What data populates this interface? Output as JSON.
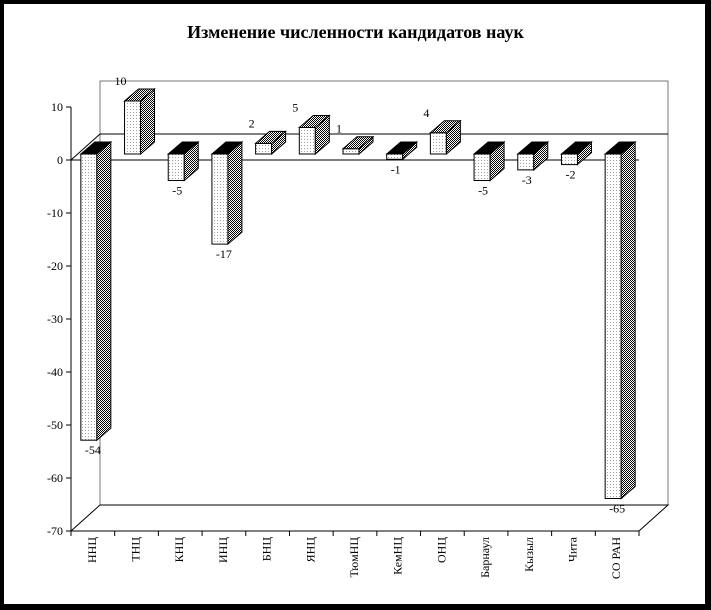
{
  "chart_data": {
    "type": "bar",
    "title": "Изменение численности кандидатов наук",
    "categories": [
      "ННЦ",
      "ТНЦ",
      "КНЦ",
      "ИНЦ",
      "БНЦ",
      "ЯНЦ",
      "ТюмНЦ",
      "КемНЦ",
      "ОНЦ",
      "Барнаул",
      "Кызыл",
      "Чита",
      "СО РАН"
    ],
    "values": [
      -54,
      10,
      -5,
      -17,
      2,
      5,
      1,
      -1,
      4,
      -5,
      -3,
      -2,
      -65
    ],
    "value_labels": [
      "-54",
      "10",
      "-5",
      "-17",
      "2",
      "5",
      "1",
      "-1",
      "4",
      "-5",
      "-3",
      "-2",
      "-65"
    ],
    "ylim": [
      -70,
      10
    ],
    "yticks": [
      10,
      0,
      -10,
      -20,
      -30,
      -40,
      -50,
      -60,
      -70
    ],
    "ytick_labels": [
      "10",
      "0",
      "-10",
      "-20",
      "-30",
      "-40",
      "-50",
      "-60",
      "-70"
    ],
    "xlabel": "",
    "ylabel": "",
    "grid": false,
    "legend": "none",
    "colors": {
      "bar_front": "#ffffff",
      "bar_side": "#8a8a8a",
      "bar_top": "#000000",
      "frame": "#000000"
    }
  }
}
